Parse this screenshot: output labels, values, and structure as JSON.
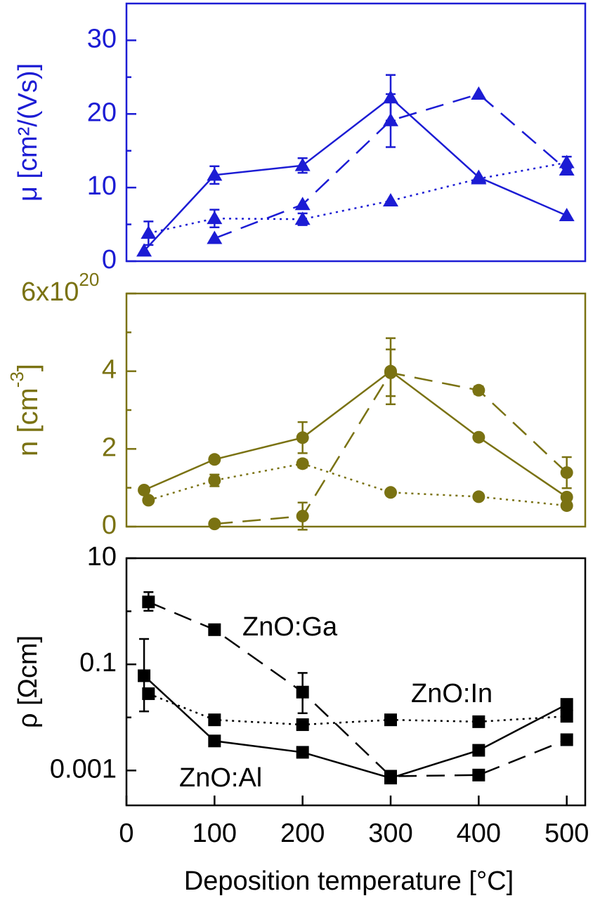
{
  "chart_data": [
    {
      "type": "line",
      "color": "#1c1cd4",
      "ylabel": "μ [cm²/(Vs)]",
      "xlim": [
        0,
        521
      ],
      "ylim": [
        0,
        35
      ],
      "yticks": [
        0,
        10,
        20,
        30
      ],
      "yminorticks": [
        5,
        15,
        25
      ],
      "series": [
        {
          "line_style": "solid",
          "marker": "triangle",
          "x": [
            20,
            100,
            200,
            300,
            400,
            500
          ],
          "values": [
            1.4,
            11.7,
            13.0,
            22.2,
            11.4,
            6.2
          ],
          "errors": [
            null,
            1.2,
            1.0,
            3.1,
            null,
            null
          ]
        },
        {
          "line_style": "dashed",
          "marker": "triangle",
          "x": [
            100,
            200,
            300,
            400,
            500
          ],
          "values": [
            3.1,
            7.7,
            19.1,
            22.7,
            12.4
          ],
          "errors": [
            null,
            null,
            3.6,
            null,
            null
          ]
        },
        {
          "line_style": "dotted",
          "marker": "triangle",
          "x": [
            25,
            100,
            200,
            300,
            400,
            500
          ],
          "values": [
            3.8,
            5.8,
            5.7,
            8.2,
            11.2,
            13.4
          ],
          "errors": [
            1.6,
            1.2,
            0.8,
            null,
            null,
            0.8
          ]
        }
      ]
    },
    {
      "type": "line",
      "color": "#7a7212",
      "ylabel_parts": [
        "n [cm",
        "-3",
        "]"
      ],
      "xlim": [
        0,
        521
      ],
      "ylim": [
        0,
        6e+20
      ],
      "yticks": [
        0,
        {
          "value": 2e+20,
          "label": "2"
        },
        {
          "value": 4e+20,
          "label": "4"
        },
        {
          "value": 6e+20,
          "label": "6x10",
          "exponent": "20"
        }
      ],
      "yminorticks": [
        1e+20,
        3e+20,
        5e+20
      ],
      "series": [
        {
          "line_style": "solid",
          "marker": "circle",
          "x": [
            20,
            100,
            200,
            300,
            400,
            500
          ],
          "values": [
            9.4e+19,
            1.73e+20,
            2.29e+20,
            4e+20,
            2.3e+20,
            7.6e+19
          ],
          "errors": [
            null,
            null,
            4e+19,
            8.5e+19,
            null,
            null
          ]
        },
        {
          "line_style": "dashed",
          "marker": "circle",
          "x": [
            100,
            200,
            300,
            400,
            500
          ],
          "values": [
            7e+18,
            2.7e+19,
            3.96e+20,
            3.51e+20,
            1.39e+20
          ],
          "errors": [
            null,
            3.5e+19,
            6e+19,
            1e+19,
            4e+19
          ]
        },
        {
          "line_style": "dotted",
          "marker": "circle",
          "x": [
            25,
            100,
            200,
            300,
            400,
            500
          ],
          "values": [
            6.8e+19,
            1.19e+20,
            1.62e+20,
            8.8e+19,
            7.7e+19,
            5.4e+19
          ],
          "errors": [
            null,
            1.5e+19,
            1e+19,
            null,
            null,
            null
          ]
        }
      ]
    },
    {
      "type": "line",
      "color": "#000000",
      "ylabel": "ρ [Ωcm]",
      "yscale": "log",
      "xlim": [
        0,
        521
      ],
      "ylim": [
        0.00022,
        10
      ],
      "yticks": [
        10,
        0.1,
        0.001
      ],
      "yminorticks": [
        1,
        0.01
      ],
      "xticks": [
        0,
        100,
        200,
        300,
        400,
        500
      ],
      "xlabel": "Deposition temperature [°C]",
      "series": [
        {
          "name": "ZnO:Al",
          "line_style": "solid",
          "marker": "square",
          "x": [
            20,
            100,
            200,
            300,
            400,
            500
          ],
          "values": [
            0.061,
            0.0036,
            0.0022,
            0.00072,
            0.0024,
            0.0176
          ],
          "errors": [
            [
              0.048,
              0.24
            ],
            null,
            null,
            null,
            null,
            null
          ]
        },
        {
          "name": "ZnO:Ga",
          "line_style": "dashed",
          "marker": "square",
          "x": [
            25,
            100,
            200,
            300,
            400,
            500
          ],
          "values": [
            1.5,
            0.45,
            0.03,
            0.00078,
            0.00082,
            0.0038
          ],
          "errors": [
            [
              0.48,
              0.8
            ],
            null,
            [
              0.018,
              0.039
            ],
            null,
            null,
            null
          ]
        },
        {
          "name": "ZnO:In",
          "line_style": "dotted",
          "marker": "square",
          "x": [
            25,
            100,
            200,
            300,
            400,
            500
          ],
          "values": [
            0.028,
            0.009,
            0.0073,
            0.009,
            0.0083,
            0.0105
          ]
        }
      ]
    }
  ]
}
